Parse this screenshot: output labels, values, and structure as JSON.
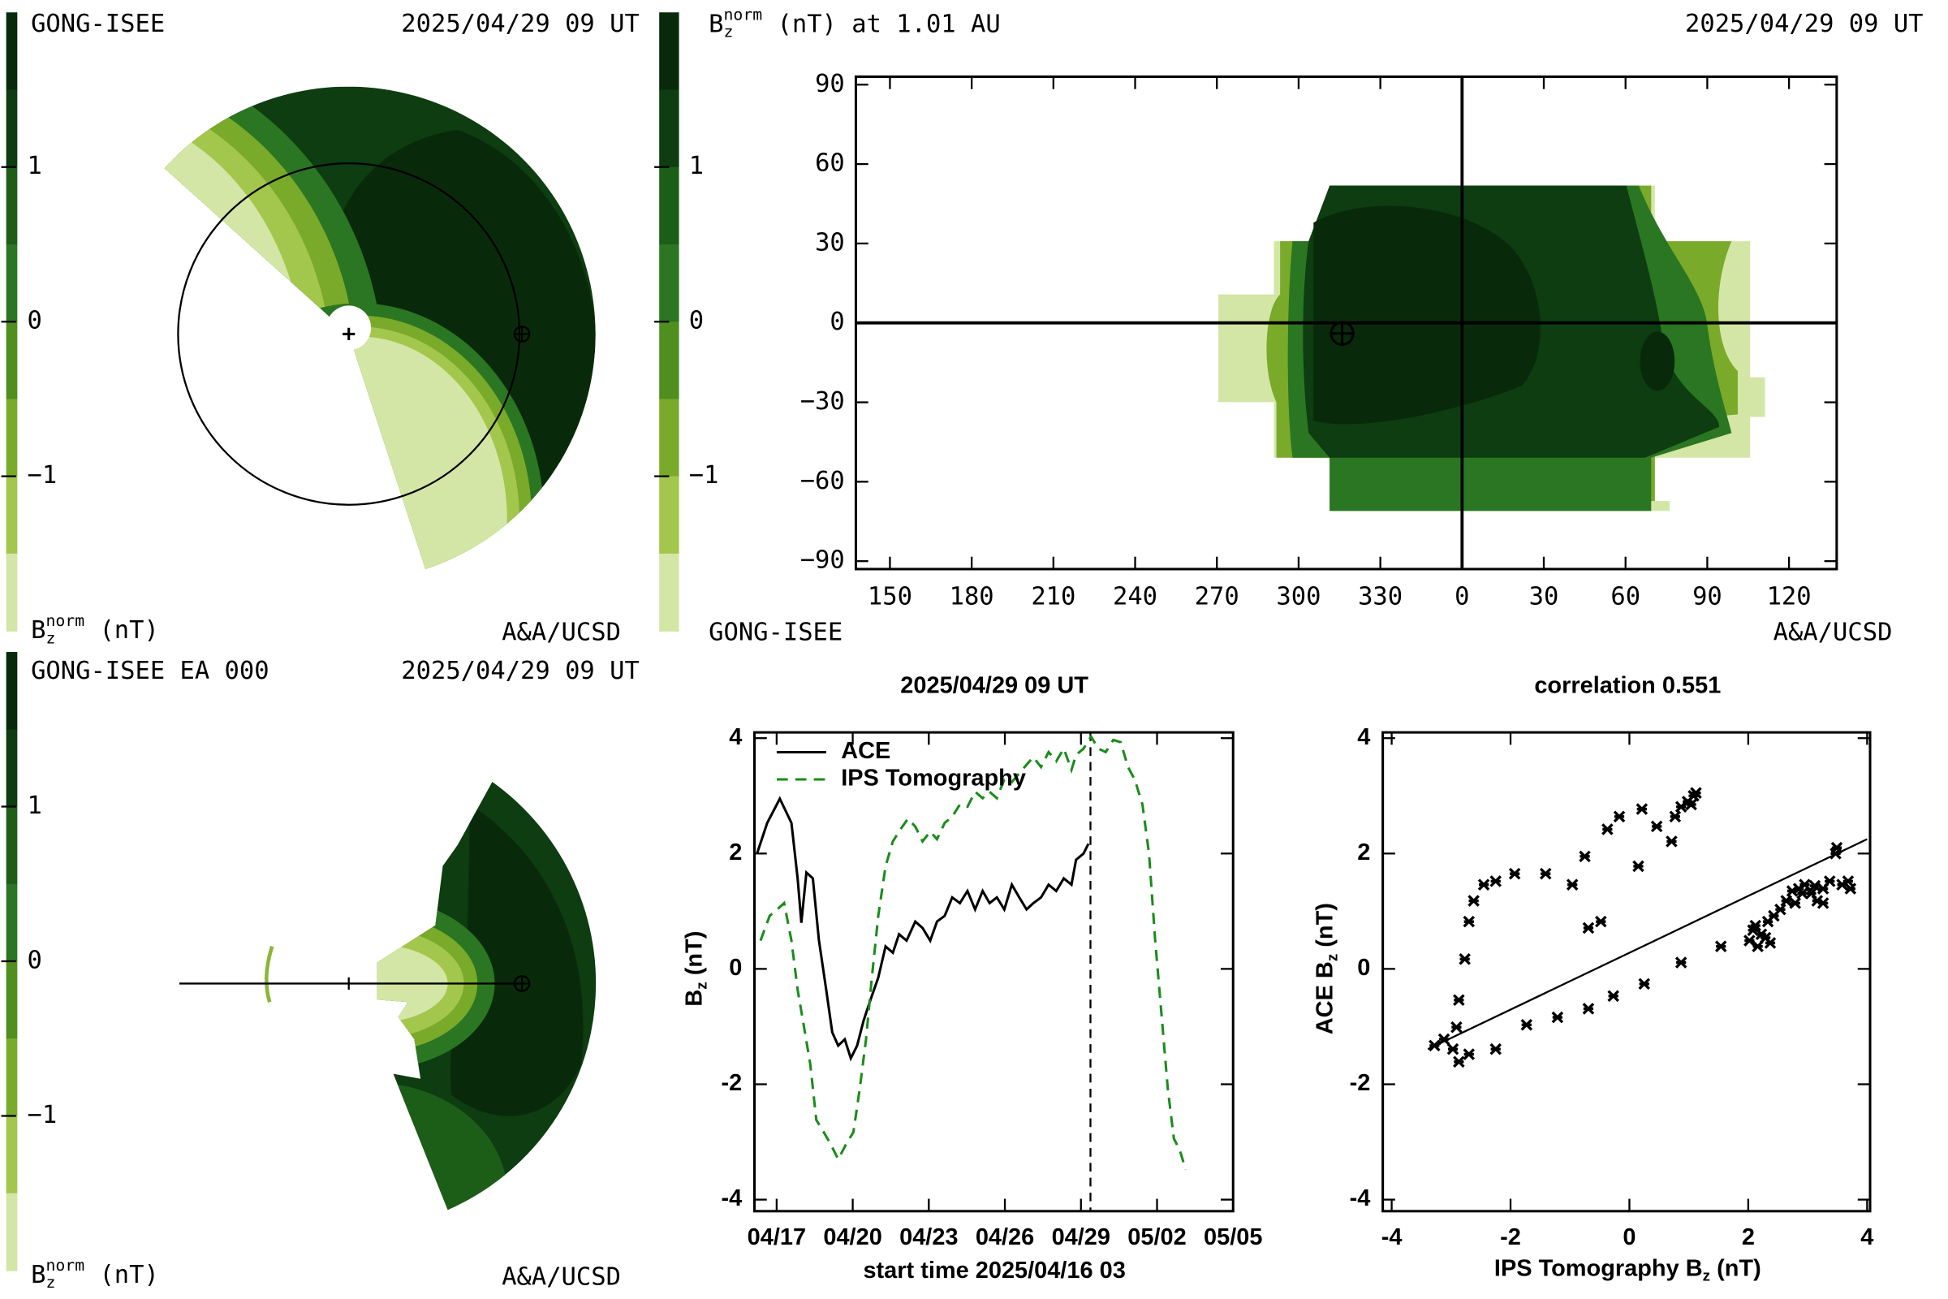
{
  "chart_data": [
    {
      "type": "ecliptic-map",
      "label": "GONG-ISEE",
      "date": "2025/04/29 09 UT",
      "colorbar": {
        "colors": [
          "#082a0a",
          "#0d3d10",
          "#1c5e18",
          "#2b7622",
          "#4f8e1f",
          "#7aaa2a",
          "#a3c64c",
          "#d3e6a6"
        ],
        "lim": [
          -2,
          2
        ],
        "ticks": [
          1,
          0,
          {
            "value": -1,
            "label": "−1"
          }
        ]
      },
      "colorbar_label": {
        "base": "B",
        "sub": "z",
        "sup": "norm",
        "rest": " (nT)"
      },
      "credit": "A&A/UCSD"
    },
    {
      "type": "synoptic-map",
      "title": {
        "base": "B",
        "sub": "z",
        "sup": "norm",
        "rest": " (nT) at 1.01 AU"
      },
      "date": "2025/04/29 09 UT",
      "xlim": [
        137.5,
        497.5
      ],
      "xticks": [
        150,
        180,
        210,
        240,
        270,
        300,
        330,
        {
          "value": 360,
          "label": "0"
        },
        {
          "value": 390,
          "label": "30"
        },
        {
          "value": 420,
          "label": "60"
        },
        {
          "value": 450,
          "label": "90"
        },
        {
          "value": 480,
          "label": "120"
        }
      ],
      "ylim": [
        -93,
        93
      ],
      "yticks": [
        90,
        60,
        30,
        0,
        {
          "value": -30,
          "label": "−30"
        },
        {
          "value": -60,
          "label": "−60"
        },
        {
          "value": -90,
          "label": "−90"
        }
      ],
      "crosshair_lon": 360,
      "crosshair_lat": 0,
      "earth": {
        "lon": 316,
        "lat": -4
      },
      "colorbar": {
        "colors": [
          "#082a0a",
          "#0d3d10",
          "#1c5e18",
          "#2b7622",
          "#4f8e1f",
          "#7aaa2a",
          "#a3c64c",
          "#d3e6a6"
        ],
        "lim": [
          -2,
          2
        ],
        "ticks": [
          1,
          0,
          {
            "value": -1,
            "label": "−1"
          }
        ]
      },
      "label": "GONG-ISEE",
      "credit": "A&A/UCSD"
    },
    {
      "type": "meridional-map",
      "label": "GONG-ISEE EA 000",
      "date": "2025/04/29 09 UT",
      "colorbar": {
        "colors": [
          "#082a0a",
          "#0d3d10",
          "#1c5e18",
          "#2b7622",
          "#4f8e1f",
          "#7aaa2a",
          "#a3c64c",
          "#d3e6a6"
        ],
        "lim": [
          -2,
          2
        ],
        "ticks": [
          1,
          0,
          {
            "value": -1,
            "label": "−1"
          }
        ]
      },
      "colorbar_label": {
        "base": "B",
        "sub": "z",
        "sup": "norm",
        "rest": " (nT)"
      },
      "credit": "A&A/UCSD"
    },
    {
      "type": "line",
      "title": "2025/04/29 09 UT",
      "xlabel": "start time 2025/04/16 03",
      "ylabel": {
        "base": "B",
        "sub": "z",
        "rest": " (nT)"
      },
      "xlim": [
        0,
        18.875
      ],
      "xticks": [
        {
          "value": 0.875,
          "label": "04/17"
        },
        {
          "value": 3.875,
          "label": "04/20"
        },
        {
          "value": 6.875,
          "label": "04/23"
        },
        {
          "value": 9.875,
          "label": "04/26"
        },
        {
          "value": 12.875,
          "label": "04/29"
        },
        {
          "value": 15.875,
          "label": "05/02"
        },
        {
          "value": 18.875,
          "label": "05/05"
        }
      ],
      "ylim": [
        -4.2,
        4.1
      ],
      "yticks": [
        4,
        2,
        0,
        -2,
        -4
      ],
      "marker_x": 13.25,
      "legend": "upper left",
      "series": [
        {
          "name": "ACE",
          "color": "#000000",
          "style": "solid",
          "x": [
            0.1,
            0.5,
            1.0,
            1.46,
            1.7,
            1.85,
            2.05,
            2.3,
            2.54,
            2.83,
            3.07,
            3.3,
            3.56,
            3.8,
            4.05,
            4.3,
            4.54,
            4.88,
            5.17,
            5.46,
            5.7,
            6.0,
            6.34,
            6.63,
            6.93,
            7.2,
            7.5,
            7.8,
            8.1,
            8.4,
            8.7,
            9.0,
            9.27,
            9.56,
            9.85,
            10.15,
            10.44,
            10.73,
            11.0,
            11.3,
            11.6,
            11.9,
            12.2,
            12.5,
            12.68,
            12.98,
            13.17
          ],
          "values": [
            2.0,
            2.53,
            2.95,
            2.53,
            1.57,
            0.8,
            1.67,
            1.57,
            0.5,
            -0.36,
            -1.1,
            -1.33,
            -1.22,
            -1.55,
            -1.33,
            -0.9,
            -0.58,
            -0.15,
            0.39,
            0.28,
            0.6,
            0.49,
            0.82,
            0.71,
            0.49,
            0.82,
            0.92,
            1.24,
            1.14,
            1.35,
            1.03,
            1.35,
            1.14,
            1.24,
            1.03,
            1.46,
            1.24,
            1.03,
            1.14,
            1.24,
            1.46,
            1.35,
            1.57,
            1.46,
            1.89,
            2.0,
            2.17
          ]
        },
        {
          "name": "IPS Tomography",
          "color": "#1a8c1a",
          "style": "dashed",
          "x": [
            0.24,
            0.6,
            0.9,
            1.17,
            1.46,
            1.7,
            1.95,
            2.2,
            2.44,
            2.73,
            3.02,
            3.3,
            3.6,
            3.9,
            4.15,
            4.4,
            4.63,
            4.88,
            5.17,
            5.46,
            5.76,
            6.05,
            6.34,
            6.63,
            6.93,
            7.2,
            7.5,
            7.8,
            8.1,
            8.4,
            8.7,
            9.0,
            9.27,
            9.56,
            9.85,
            10.15,
            10.44,
            10.73,
            11.0,
            11.3,
            11.6,
            11.9,
            12.2,
            12.5,
            12.68,
            12.98,
            13.27,
            13.56,
            13.85,
            14.15,
            14.44,
            14.73,
            15.0,
            15.3,
            15.56,
            15.8,
            16.05,
            16.3,
            16.54,
            16.78,
            17.0
          ],
          "values": [
            0.49,
            0.92,
            1.03,
            1.14,
            0.49,
            -0.36,
            -1.0,
            -1.65,
            -2.62,
            -2.83,
            -3.05,
            -3.3,
            -3.05,
            -2.83,
            -2.08,
            -1.22,
            -0.15,
            0.92,
            1.78,
            2.21,
            2.42,
            2.6,
            2.47,
            2.21,
            2.38,
            2.25,
            2.53,
            2.64,
            2.85,
            2.81,
            3.07,
            2.96,
            3.07,
            2.96,
            3.28,
            3.24,
            3.39,
            3.54,
            3.67,
            3.5,
            3.76,
            3.6,
            3.82,
            3.45,
            3.71,
            3.82,
            4.03,
            3.82,
            3.76,
            3.97,
            3.93,
            3.5,
            3.28,
            2.85,
            2.0,
            0.49,
            -0.79,
            -2.08,
            -2.94,
            -3.15,
            -3.48
          ]
        }
      ]
    },
    {
      "type": "scatter",
      "title": "correlation 0.551",
      "xlabel": {
        "base": "IPS Tomography B",
        "sub": "z",
        "rest": " (nT)"
      },
      "ylabel": {
        "base": "ACE B",
        "sub": "z",
        "rest": " (nT)"
      },
      "xlim": [
        -4.15,
        4.05
      ],
      "xticks": [
        -4,
        -2,
        0,
        2,
        4
      ],
      "ylim": [
        -4.2,
        4.1
      ],
      "yticks": [
        4,
        2,
        0,
        -2,
        -4
      ],
      "color": "#000000",
      "x": [
        -3.28,
        -3.12,
        -2.97,
        -2.87,
        -2.7,
        -2.91,
        -2.87,
        -2.77,
        -2.7,
        -2.62,
        -2.45,
        -2.25,
        -1.93,
        -1.41,
        -0.96,
        -0.75,
        -0.37,
        -0.17,
        0.21,
        0.46,
        0.77,
        0.87,
        0.98,
        1.08,
        1.12,
        1.04,
        0.71,
        0.15,
        -0.48,
        -0.69,
        -2.25,
        -1.73,
        -1.21,
        -0.69,
        -0.27,
        0.25,
        0.87,
        1.54,
        2.02,
        2.08,
        2.12,
        2.22,
        2.33,
        2.43,
        2.54,
        2.64,
        2.74,
        2.85,
        2.95,
        3.06,
        3.16,
        3.26,
        3.37,
        3.47,
        3.49,
        3.58,
        3.68,
        3.72,
        2.79,
        2.91,
        3.12,
        3.26,
        2.16,
        2.29,
        2.37
      ],
      "y": [
        -1.33,
        -1.22,
        -1.39,
        -1.61,
        -1.48,
        -1.01,
        -0.54,
        0.17,
        0.82,
        1.18,
        1.46,
        1.52,
        1.65,
        1.65,
        1.46,
        1.95,
        2.42,
        2.64,
        2.77,
        2.47,
        2.64,
        2.81,
        2.9,
        3.0,
        3.05,
        2.85,
        2.21,
        1.78,
        0.82,
        0.71,
        -1.39,
        -0.97,
        -0.84,
        -0.69,
        -0.47,
        -0.26,
        0.11,
        0.39,
        0.49,
        0.67,
        0.75,
        0.6,
        0.82,
        0.92,
        1.03,
        1.18,
        1.35,
        1.39,
        1.46,
        1.31,
        1.18,
        1.39,
        1.52,
        2.0,
        2.1,
        1.46,
        1.52,
        1.39,
        1.14,
        1.31,
        1.44,
        1.14,
        0.39,
        0.54,
        0.45
      ],
      "fit": {
        "x": [
          -3.39,
          4.0
        ],
        "y": [
          -1.39,
          2.25
        ]
      }
    }
  ]
}
